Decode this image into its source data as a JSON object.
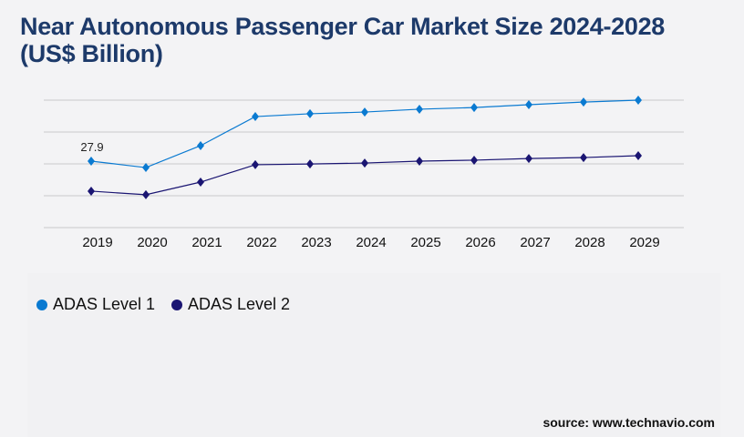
{
  "title": "Near Autonomous Passenger Car Market Size 2024-2028 (US$ Billion)",
  "source": "source: www.technavio.com",
  "chart_data": {
    "type": "line",
    "title": "Near Autonomous Passenger Car Market Size 2024-2028 (US$ Billion)",
    "categories": [
      "2019",
      "2020",
      "2021",
      "2022",
      "2023",
      "2024",
      "2025",
      "2026",
      "2027",
      "2028",
      "2029"
    ],
    "series": [
      {
        "name": "ADAS Level 1",
        "color": "#0a7ad1",
        "values": [
          27.9,
          25.2,
          34.4,
          46.6,
          47.8,
          48.5,
          49.7,
          50.4,
          51.6,
          52.7,
          53.5
        ]
      },
      {
        "name": "ADAS Level 2",
        "color": "#1a1572",
        "values": [
          15.3,
          13.8,
          19.1,
          26.4,
          26.7,
          27.1,
          27.9,
          28.3,
          29.0,
          29.4,
          30.2
        ]
      }
    ],
    "data_labels": [
      {
        "series": "ADAS Level 1",
        "category": "2019",
        "text": "27.9"
      }
    ],
    "ylim": [
      0,
      53.5
    ],
    "grid": true,
    "legend": "bottom-left"
  }
}
